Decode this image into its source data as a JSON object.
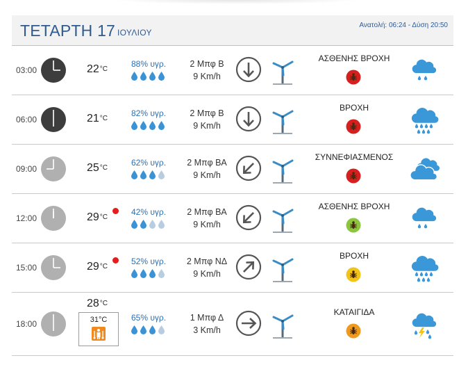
{
  "header": {
    "day_title": "ΤΕΤΑΡΤΗ 17",
    "month": "ΙΟΥΛΙΟΥ",
    "sun": "Ανατολή: 06:24 - Δύση 20:50"
  },
  "colors": {
    "title_blue": "#2f5b8f",
    "humidity_blue": "#2a6fb5",
    "drop_full": "#3b93d6",
    "drop_empty": "#b9cde0",
    "clock_night": "#3d3d3d",
    "clock_day": "#b0b0b0",
    "badge_red": "#d6201f",
    "badge_green": "#8cc63f",
    "badge_yellow": "#f2c318",
    "badge_orange": "#ee9a1e",
    "weather_blue": "#3a97d8",
    "heat_dot": "#e51c1c"
  },
  "rows": [
    {
      "time": "03:00",
      "clock": "night",
      "clock_hour": 3,
      "temp": "22",
      "unit": "°C",
      "hot": false,
      "humidity": "88% υγρ.",
      "drops_filled": 4,
      "wind_force": "2 Μπφ Β",
      "wind_speed": "9 Km/h",
      "wind_arrow": "down-arrow-icon",
      "description": "ΑΣΘΕΝΗΣ ΒΡΟΧΗ",
      "badge": "red",
      "weather_icon": "light-rain-icon"
    },
    {
      "time": "06:00",
      "clock": "night",
      "clock_hour": 6,
      "temp": "21",
      "unit": "°C",
      "hot": false,
      "humidity": "82% υγρ.",
      "drops_filled": 4,
      "wind_force": "2 Μπφ Β",
      "wind_speed": "9 Km/h",
      "wind_arrow": "down-arrow-icon",
      "description": "ΒΡΟΧΗ",
      "badge": "red",
      "weather_icon": "rain-icon"
    },
    {
      "time": "09:00",
      "clock": "day",
      "clock_hour": 9,
      "temp": "25",
      "unit": "°C",
      "hot": false,
      "humidity": "62% υγρ.",
      "drops_filled": 3,
      "wind_force": "2 Μπφ ΒΑ",
      "wind_speed": "9 Km/h",
      "wind_arrow": "down-left-arrow-icon",
      "description": "ΣΥΝΝΕΦΙΑΣΜΕΝΟΣ",
      "badge": "red",
      "weather_icon": "cloudy-icon"
    },
    {
      "time": "12:00",
      "clock": "day",
      "clock_hour": 12,
      "temp": "29",
      "unit": "°C",
      "hot": true,
      "humidity": "42% υγρ.",
      "drops_filled": 2,
      "wind_force": "2 Μπφ ΒΑ",
      "wind_speed": "9 Km/h",
      "wind_arrow": "down-left-arrow-icon",
      "description": "ΑΣΘΕΝΗΣ ΒΡΟΧΗ",
      "badge": "green",
      "weather_icon": "light-rain-icon"
    },
    {
      "time": "15:00",
      "clock": "day",
      "clock_hour": 3,
      "temp": "29",
      "unit": "°C",
      "hot": true,
      "humidity": "52% υγρ.",
      "drops_filled": 3,
      "wind_force": "2 Μπφ ΝΔ",
      "wind_speed": "9 Km/h",
      "wind_arrow": "up-right-arrow-icon",
      "description": "ΒΡΟΧΗ",
      "badge": "yellow",
      "weather_icon": "rain-icon"
    },
    {
      "time": "18:00",
      "clock": "day",
      "clock_hour": 6,
      "temp": "28",
      "unit": "°C",
      "hot": false,
      "feels": "31°C",
      "humidity": "65% υγρ.",
      "drops_filled": 3,
      "wind_force": "1 Μπφ Δ",
      "wind_speed": "3 Km/h",
      "wind_arrow": "right-arrow-icon",
      "description": "ΚΑΤΑΙΓΙΔΑ",
      "badge": "orange",
      "weather_icon": "thunderstorm-icon"
    }
  ]
}
